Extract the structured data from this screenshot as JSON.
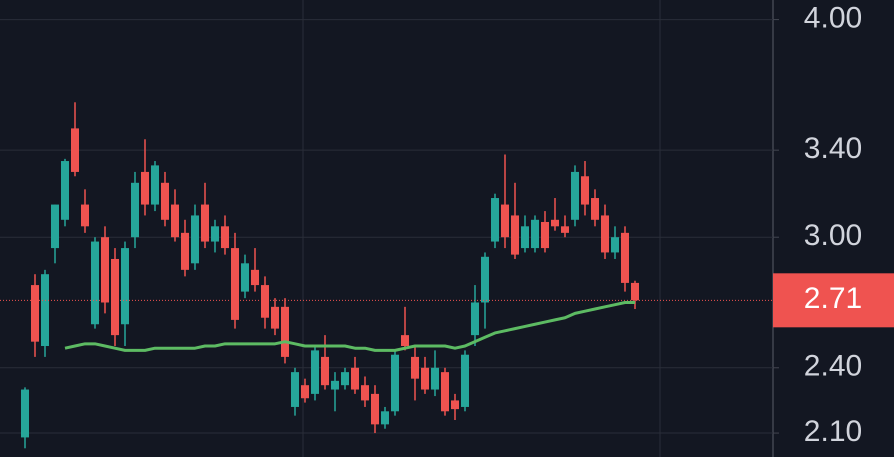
{
  "chart_data": {
    "type": "candlestick",
    "open": [
      2.08,
      2.78,
      2.5,
      2.95,
      3.08,
      3.5,
      3.15,
      2.6,
      3.0,
      2.9,
      2.6,
      3.0,
      3.3,
      3.15,
      3.25,
      3.15,
      3.02,
      2.88,
      3.15,
      2.98,
      3.05,
      2.95,
      2.75,
      2.85,
      2.78,
      2.68,
      2.68,
      2.22,
      2.32,
      2.28,
      2.45,
      2.3,
      2.32,
      2.4,
      2.32,
      2.28,
      2.14,
      2.2,
      2.55,
      2.45,
      2.4,
      2.3,
      2.38,
      2.25,
      2.22,
      2.55,
      2.7,
      2.98,
      3.15,
      3.1,
      2.95,
      2.95,
      3.07,
      3.08,
      3.05,
      3.08,
      3.28,
      3.18,
      3.1,
      2.93,
      3.02,
      2.79
    ],
    "high": [
      2.31,
      2.83,
      2.85,
      3.15,
      3.36,
      3.62,
      3.22,
      3.0,
      3.05,
      2.95,
      2.98,
      3.3,
      3.45,
      3.35,
      3.3,
      3.22,
      3.08,
      3.15,
      3.25,
      3.08,
      3.1,
      3.02,
      2.92,
      2.95,
      2.82,
      2.72,
      2.72,
      2.4,
      2.35,
      2.5,
      2.55,
      2.38,
      2.4,
      2.45,
      2.36,
      2.32,
      2.22,
      2.48,
      2.68,
      2.5,
      2.45,
      2.48,
      2.4,
      2.28,
      2.48,
      2.78,
      2.93,
      3.2,
      3.38,
      3.25,
      3.1,
      3.1,
      3.12,
      3.18,
      3.1,
      3.33,
      3.35,
      3.22,
      3.15,
      3.05,
      3.05,
      2.8
    ],
    "low": [
      2.03,
      2.45,
      2.45,
      2.88,
      3.05,
      3.28,
      3.02,
      2.58,
      2.65,
      2.5,
      2.5,
      2.95,
      3.1,
      3.12,
      3.05,
      2.98,
      2.82,
      2.85,
      2.95,
      2.93,
      2.92,
      2.58,
      2.72,
      2.75,
      2.58,
      2.55,
      2.42,
      2.18,
      2.24,
      2.25,
      2.3,
      2.2,
      2.3,
      2.28,
      2.22,
      2.1,
      2.12,
      2.18,
      2.48,
      2.25,
      2.28,
      2.27,
      2.18,
      2.16,
      2.2,
      2.5,
      2.58,
      2.95,
      2.95,
      2.9,
      2.93,
      2.93,
      2.93,
      3.03,
      3.0,
      3.05,
      3.1,
      3.05,
      2.9,
      2.9,
      2.75,
      2.67
    ],
    "close": [
      2.3,
      2.52,
      2.83,
      3.15,
      3.35,
      3.3,
      3.05,
      2.98,
      2.7,
      2.55,
      2.95,
      3.25,
      3.15,
      3.33,
      3.08,
      3.0,
      2.85,
      3.1,
      2.98,
      3.05,
      2.95,
      2.62,
      2.88,
      2.78,
      2.63,
      2.58,
      2.45,
      2.38,
      2.26,
      2.48,
      2.32,
      2.34,
      2.38,
      2.3,
      2.25,
      2.14,
      2.2,
      2.46,
      2.5,
      2.35,
      2.3,
      2.4,
      2.2,
      2.21,
      2.46,
      2.7,
      2.91,
      3.18,
      3.0,
      2.92,
      3.05,
      3.08,
      2.95,
      3.05,
      3.02,
      3.3,
      3.15,
      3.08,
      2.93,
      3.0,
      2.79,
      2.71
    ],
    "moving_average": {
      "color": "#5dbb63",
      "values": [
        null,
        null,
        null,
        null,
        2.49,
        2.5,
        2.51,
        2.51,
        2.5,
        2.49,
        2.48,
        2.48,
        2.48,
        2.49,
        2.49,
        2.49,
        2.49,
        2.49,
        2.5,
        2.5,
        2.51,
        2.51,
        2.51,
        2.51,
        2.51,
        2.51,
        2.52,
        2.51,
        2.5,
        2.5,
        2.5,
        2.5,
        2.5,
        2.49,
        2.49,
        2.48,
        2.48,
        2.48,
        2.49,
        2.5,
        2.5,
        2.5,
        2.5,
        2.49,
        2.5,
        2.52,
        2.54,
        2.56,
        2.57,
        2.58,
        2.59,
        2.6,
        2.61,
        2.62,
        2.63,
        2.65,
        2.66,
        2.67,
        2.68,
        2.69,
        2.7,
        2.7
      ]
    },
    "up_color": "#26a69a",
    "down_color": "#ef5350",
    "last_price": 2.71,
    "ylim": [
      1.99,
      4.09
    ],
    "yticks": [
      {
        "value": 4.0,
        "label": "4.00"
      },
      {
        "value": 3.4,
        "label": "3.40"
      },
      {
        "value": 3.0,
        "label": "3.00"
      },
      {
        "value": 2.4,
        "label": "2.40"
      },
      {
        "value": 2.1,
        "label": "2.10"
      }
    ],
    "grid": true
  }
}
